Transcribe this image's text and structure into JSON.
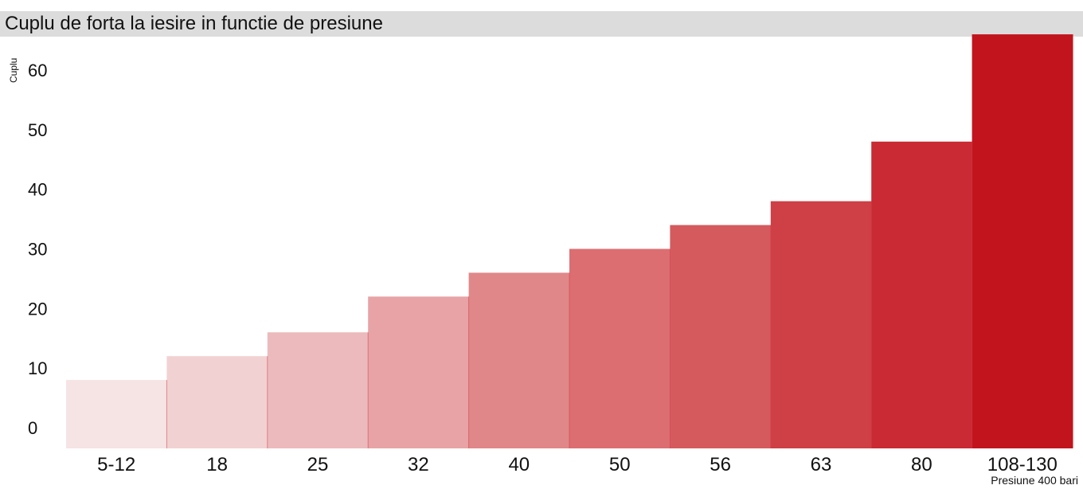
{
  "chart_data": {
    "type": "bar",
    "title": "Cuplu de forta la iesire in functie de presiune",
    "ylabel": "Cuplu",
    "xlabel": "Presiune 400 bari",
    "categories": [
      "5-12",
      "18",
      "25",
      "32",
      "40",
      "50",
      "56",
      "63",
      "80",
      "108-130"
    ],
    "values": [
      8,
      12,
      16,
      22,
      26,
      30,
      34,
      38,
      48,
      66
    ],
    "yticks": [
      0,
      10,
      20,
      30,
      40,
      50,
      60
    ],
    "ylim": [
      0,
      66
    ],
    "grid": false,
    "legend": "none",
    "colors": [
      "#f6e3e4",
      "#f2d1d3",
      "#ecbabc",
      "#e7a3a6",
      "#e08789",
      "#dc6e72",
      "#d55a5e",
      "#ce3f46",
      "#c92a34",
      "#c2141d"
    ],
    "bar_separator_color": "#d4404c"
  }
}
